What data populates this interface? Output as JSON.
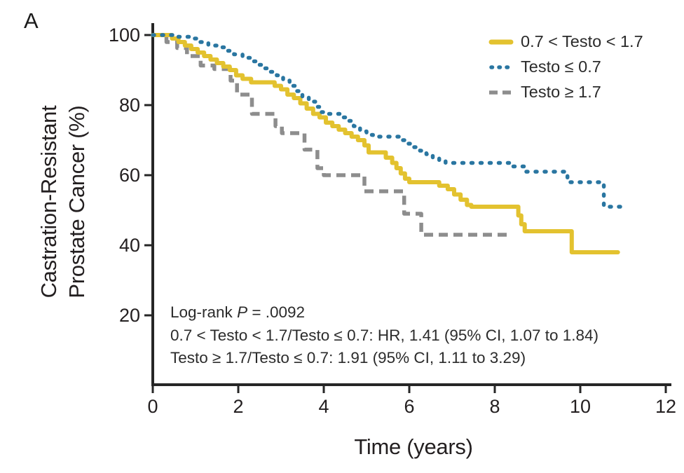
{
  "panel_label": "A",
  "colors": {
    "axis": "#262626",
    "text": "#231f20",
    "background": "#ffffff",
    "series_yellow": "#E3C22F",
    "series_blue": "#2A76A1",
    "series_gray": "#8D8D8D"
  },
  "chart_data": {
    "type": "line",
    "subtype": "kaplan-meier-step",
    "title": "",
    "xlabel": "Time (years)",
    "ylabel": "Castration-Resistant Prostate Cancer (%)",
    "ylabel_lines": [
      "Castration-Resistant",
      "Prostate Cancer (%)"
    ],
    "xlim": [
      0,
      12
    ],
    "ylim": [
      0,
      100
    ],
    "xticks": [
      0,
      2,
      4,
      6,
      8,
      10,
      12
    ],
    "yticks": [
      20,
      40,
      60,
      80,
      100
    ],
    "grid": false,
    "legend_position": "top-right",
    "series": [
      {
        "name": "0.7 < Testo < 1.7",
        "color": "#E3C22F",
        "style": "solid",
        "points": [
          [
            0,
            100
          ],
          [
            0.45,
            99
          ],
          [
            0.6,
            98
          ],
          [
            0.75,
            97
          ],
          [
            0.9,
            96
          ],
          [
            1.05,
            95
          ],
          [
            1.2,
            94
          ],
          [
            1.35,
            93
          ],
          [
            1.5,
            92
          ],
          [
            1.65,
            91
          ],
          [
            1.8,
            90
          ],
          [
            1.95,
            88.5
          ],
          [
            2.1,
            87.5
          ],
          [
            2.3,
            86.5
          ],
          [
            2.85,
            85.5
          ],
          [
            3.0,
            84.5
          ],
          [
            3.15,
            83
          ],
          [
            3.3,
            82
          ],
          [
            3.45,
            80.5
          ],
          [
            3.6,
            79
          ],
          [
            3.75,
            77.5
          ],
          [
            3.9,
            76.5
          ],
          [
            4.05,
            75
          ],
          [
            4.2,
            74
          ],
          [
            4.35,
            73
          ],
          [
            4.5,
            72
          ],
          [
            4.65,
            71
          ],
          [
            4.8,
            70
          ],
          [
            4.95,
            68.5
          ],
          [
            5.05,
            66.5
          ],
          [
            5.45,
            65
          ],
          [
            5.6,
            63.5
          ],
          [
            5.7,
            62
          ],
          [
            5.8,
            60.5
          ],
          [
            5.9,
            59
          ],
          [
            6.0,
            58
          ],
          [
            6.7,
            57
          ],
          [
            6.9,
            56
          ],
          [
            7.05,
            54.5
          ],
          [
            7.2,
            53
          ],
          [
            7.35,
            51.5
          ],
          [
            7.45,
            51
          ],
          [
            8.55,
            48.5
          ],
          [
            8.62,
            46
          ],
          [
            8.7,
            44
          ],
          [
            9.8,
            38
          ],
          [
            10.88,
            38
          ]
        ]
      },
      {
        "name": "Testo ≤ 0.7",
        "color": "#2A76A1",
        "style": "dotted",
        "points": [
          [
            0,
            100
          ],
          [
            0.6,
            99.5
          ],
          [
            0.9,
            99
          ],
          [
            1.1,
            98
          ],
          [
            1.3,
            97
          ],
          [
            1.5,
            96.5
          ],
          [
            1.7,
            95.5
          ],
          [
            1.9,
            94.5
          ],
          [
            2.1,
            93.5
          ],
          [
            2.3,
            92.5
          ],
          [
            2.45,
            91.5
          ],
          [
            2.6,
            90.5
          ],
          [
            2.75,
            89.5
          ],
          [
            2.9,
            88.5
          ],
          [
            3.05,
            87
          ],
          [
            3.2,
            85.5
          ],
          [
            3.35,
            84
          ],
          [
            3.5,
            82.5
          ],
          [
            3.65,
            81
          ],
          [
            3.8,
            79.5
          ],
          [
            3.95,
            78
          ],
          [
            4.1,
            77.5
          ],
          [
            4.4,
            76.5
          ],
          [
            4.55,
            75.5
          ],
          [
            4.7,
            74
          ],
          [
            4.85,
            72.5
          ],
          [
            5.0,
            71.5
          ],
          [
            5.15,
            71
          ],
          [
            5.8,
            70
          ],
          [
            5.95,
            69
          ],
          [
            6.1,
            68
          ],
          [
            6.25,
            67
          ],
          [
            6.4,
            66
          ],
          [
            6.55,
            65
          ],
          [
            6.7,
            64
          ],
          [
            6.85,
            63.5
          ],
          [
            8.4,
            62.5
          ],
          [
            8.7,
            61
          ],
          [
            9.7,
            58
          ],
          [
            10.55,
            51
          ],
          [
            11.05,
            51
          ]
        ]
      },
      {
        "name": "Testo ≥ 1.7",
        "color": "#8D8D8D",
        "style": "dashed",
        "points": [
          [
            0,
            100
          ],
          [
            0.32,
            98
          ],
          [
            0.57,
            96.3
          ],
          [
            0.8,
            94
          ],
          [
            1.12,
            91.3
          ],
          [
            1.44,
            90.3
          ],
          [
            1.82,
            87
          ],
          [
            1.97,
            83
          ],
          [
            2.32,
            77.5
          ],
          [
            2.87,
            74
          ],
          [
            3.02,
            72
          ],
          [
            3.55,
            67.3
          ],
          [
            3.85,
            62
          ],
          [
            4.0,
            60
          ],
          [
            4.95,
            55.4
          ],
          [
            5.88,
            49
          ],
          [
            6.28,
            43
          ],
          [
            8.3,
            43
          ]
        ]
      }
    ],
    "annotation": {
      "logrank_prefix": "Log-rank ",
      "logrank_p": "P",
      "logrank_rest": " = .0092",
      "line2": "0.7 < Testo < 1.7/Testo ≤ 0.7: HR, 1.41 (95% CI, 1.07 to 1.84)",
      "line3": "Testo ≥ 1.7/Testo ≤ 0.7: 1.91 (95% CI, 1.11 to 3.29)"
    }
  }
}
